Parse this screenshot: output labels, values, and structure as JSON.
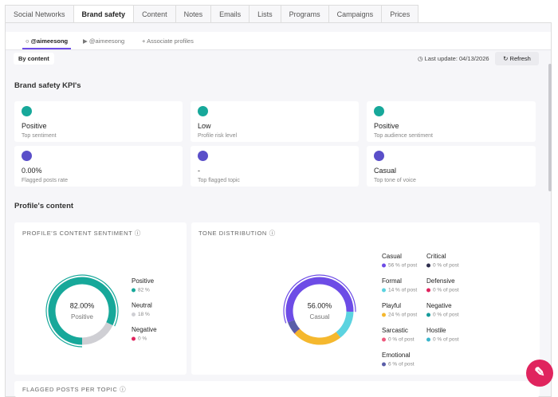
{
  "tabs": [
    "Social Networks",
    "Brand safety",
    "Content",
    "Notes",
    "Emails",
    "Lists",
    "Programs",
    "Campaigns",
    "Prices"
  ],
  "subtabs": [
    "@aimeesong",
    "@aimeesong",
    "Associate profiles"
  ],
  "filter": "By content",
  "last_update": "Last update: 04/13/2026",
  "refresh": "Refresh",
  "kpi_title": "Brand safety KPI's",
  "kpis": [
    {
      "value": "Positive",
      "label": "Top sentiment"
    },
    {
      "value": "Low",
      "label": "Profile risk level"
    },
    {
      "value": "Positive",
      "label": "Top audience sentiment"
    },
    {
      "value": "0.00%",
      "label": "Flagged posts rate"
    },
    {
      "value": "-",
      "label": "Top flagged topic"
    },
    {
      "value": "Casual",
      "label": "Top tone of voice"
    }
  ],
  "section_title": "Profile's content",
  "sentiment": {
    "title": "PROFILE'S CONTENT SENTIMENT",
    "center_value": "82.00%",
    "center_label": "Positive",
    "chart_data": {
      "type": "donut",
      "series": [
        {
          "name": "Positive",
          "color": "#17a89a",
          "values": [
            82
          ],
          "value_labels": [
            "82 %"
          ]
        },
        {
          "name": "Neutral",
          "color": "#cfcfd4",
          "values": [
            18
          ],
          "value_labels": [
            "18 %"
          ]
        },
        {
          "name": "Negative",
          "color": "#e0245e",
          "values": [
            0
          ],
          "value_labels": [
            "0 %"
          ]
        }
      ]
    }
  },
  "tone": {
    "title": "TONE DISTRIBUTION",
    "center_value": "56.00%",
    "center_label": "Casual",
    "chart_data": {
      "type": "donut",
      "series": [
        {
          "name": "Casual",
          "color": "#6d4ce6",
          "values": [
            56
          ],
          "value_labels": [
            "56 % of post"
          ]
        },
        {
          "name": "Formal",
          "color": "#5cd3e0",
          "values": [
            14
          ],
          "value_labels": [
            "14 % of post"
          ]
        },
        {
          "name": "Playful",
          "color": "#f5b82e",
          "values": [
            24
          ],
          "value_labels": [
            "24 % of post"
          ]
        },
        {
          "name": "Sarcastic",
          "color": "#ee5a7e",
          "values": [
            0
          ],
          "value_labels": [
            "0 % of post"
          ]
        },
        {
          "name": "Emotional",
          "color": "#5a5ea8",
          "values": [
            6
          ],
          "value_labels": [
            "6 % of post"
          ]
        },
        {
          "name": "Critical",
          "color": "#2e2e4d",
          "values": [
            0
          ],
          "value_labels": [
            "0 % of post"
          ]
        },
        {
          "name": "Defensive",
          "color": "#e0245e",
          "values": [
            0
          ],
          "value_labels": [
            "0 % of post"
          ]
        },
        {
          "name": "Negative",
          "color": "#169b9b",
          "values": [
            0
          ],
          "value_labels": [
            "0 % of post"
          ]
        },
        {
          "name": "Hostile",
          "color": "#3cb5cc",
          "values": [
            0
          ],
          "value_labels": [
            "0 % of post"
          ]
        }
      ]
    }
  },
  "flagged_title": "FLAGGED POSTS PER TOPIC"
}
